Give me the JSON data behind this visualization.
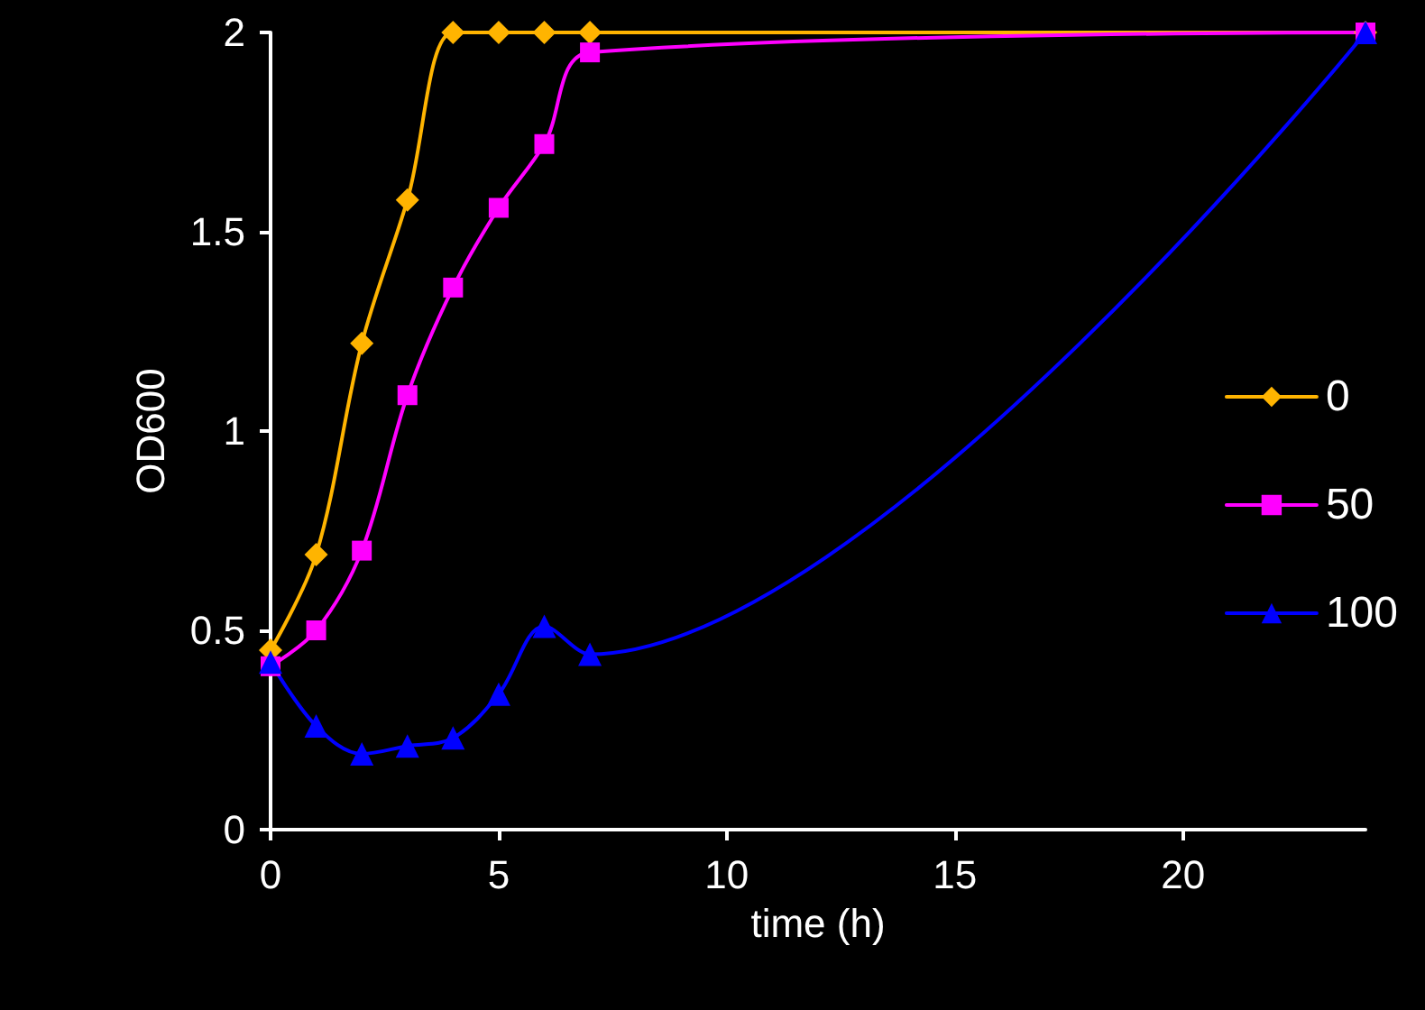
{
  "chart_data": {
    "type": "line",
    "xlabel": "time (h)",
    "ylabel": "OD600",
    "x": [
      0,
      1,
      2,
      3,
      4,
      5,
      6,
      7,
      24
    ],
    "series": [
      {
        "name": "0",
        "color": "#ffb400",
        "marker": "diamond",
        "values": [
          0.45,
          0.69,
          1.22,
          1.58,
          2,
          2,
          2,
          2,
          2
        ]
      },
      {
        "name": "50",
        "color": "#ff00ff",
        "marker": "square",
        "values": [
          0.41,
          0.5,
          0.7,
          1.09,
          1.36,
          1.56,
          1.72,
          1.95,
          2
        ]
      },
      {
        "name": "100",
        "color": "#0000ff",
        "marker": "triangle",
        "values": [
          0.42,
          0.26,
          0.19,
          0.21,
          0.23,
          0.34,
          0.51,
          0.44,
          2
        ]
      }
    ],
    "xlim": [
      0,
      24
    ],
    "xticks": [
      0,
      5,
      10,
      15,
      20
    ],
    "ylim": [
      0,
      2
    ],
    "yticks": [
      0,
      0.5,
      1,
      1.5,
      2
    ],
    "grid": false,
    "legend": "right"
  }
}
